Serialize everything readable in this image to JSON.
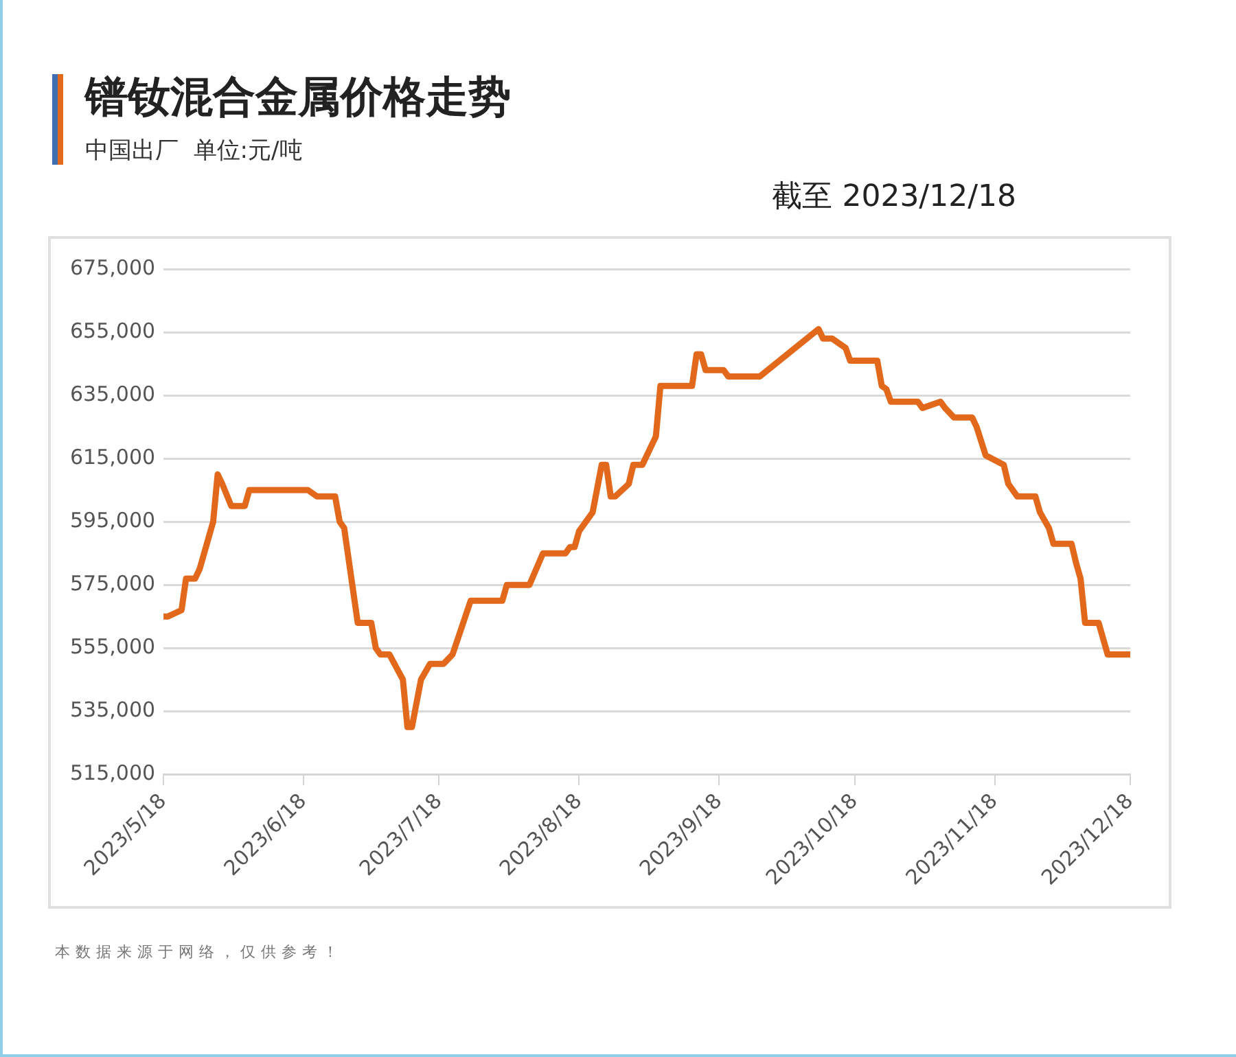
{
  "chart_data": {
    "type": "line",
    "title": "镨钕混合金属价格走势",
    "subtitle": "中国出厂  单位:元/吨",
    "annotations": [
      "截至 2023/12/18",
      "本数据来源于网络，仅供参考！"
    ],
    "x": [
      "2023-05-18",
      "2023-05-19",
      "2023-05-22",
      "2023-05-23",
      "2023-05-25",
      "2023-05-26",
      "2023-05-29",
      "2023-05-30",
      "2023-05-31",
      "2023-06-02",
      "2023-06-05",
      "2023-06-06",
      "2023-06-19",
      "2023-06-21",
      "2023-06-25",
      "2023-06-26",
      "2023-06-27",
      "2023-06-30",
      "2023-07-03",
      "2023-07-04",
      "2023-07-05",
      "2023-07-07",
      "2023-07-10",
      "2023-07-11",
      "2023-07-12",
      "2023-07-14",
      "2023-07-16",
      "2023-07-19",
      "2023-07-21",
      "2023-07-25",
      "2023-08-01",
      "2023-08-02",
      "2023-08-07",
      "2023-08-10",
      "2023-08-15",
      "2023-08-16",
      "2023-08-17",
      "2023-08-18",
      "2023-08-21",
      "2023-08-23",
      "2023-08-24",
      "2023-08-25",
      "2023-08-26",
      "2023-08-29",
      "2023-08-30",
      "2023-09-01",
      "2023-09-04",
      "2023-09-05",
      "2023-09-12",
      "2023-09-13",
      "2023-09-14",
      "2023-09-15",
      "2023-09-19",
      "2023-09-20",
      "2023-09-27",
      "2023-10-10",
      "2023-10-11",
      "2023-10-13",
      "2023-10-16",
      "2023-10-17",
      "2023-10-23",
      "2023-10-24",
      "2023-10-25",
      "2023-10-26",
      "2023-11-01",
      "2023-11-02",
      "2023-11-06",
      "2023-11-07",
      "2023-11-09",
      "2023-11-13",
      "2023-11-14",
      "2023-11-16",
      "2023-11-20",
      "2023-11-21",
      "2023-11-23",
      "2023-11-27",
      "2023-11-28",
      "2023-11-30",
      "2023-12-01",
      "2023-12-05",
      "2023-12-06",
      "2023-12-07",
      "2023-12-08",
      "2023-12-11",
      "2023-12-13",
      "2023-12-18"
    ],
    "series": [
      {
        "color": "#e2691c",
        "values": [
          565000,
          565000,
          567000,
          577000,
          577000,
          580000,
          595000,
          610000,
          607000,
          600000,
          600000,
          605000,
          605000,
          603000,
          603000,
          595000,
          593000,
          563000,
          563000,
          555000,
          553000,
          553000,
          545000,
          530000,
          530000,
          545000,
          550000,
          550000,
          553000,
          570000,
          570000,
          575000,
          575000,
          585000,
          585000,
          587000,
          587000,
          592000,
          598000,
          613000,
          613000,
          603000,
          603000,
          607000,
          613000,
          613000,
          622000,
          638000,
          638000,
          648000,
          648000,
          643000,
          643000,
          641000,
          641000,
          656000,
          653000,
          653000,
          650000,
          646000,
          646000,
          638000,
          637000,
          633000,
          633000,
          631000,
          633000,
          631000,
          628000,
          628000,
          625000,
          616000,
          613000,
          607000,
          603000,
          603000,
          598000,
          593000,
          588000,
          588000,
          582000,
          577000,
          563000,
          563000,
          553000,
          553000
        ]
      }
    ],
    "xlim": [
      "2023-05-18",
      "2023-12-18"
    ],
    "xticks": [
      {
        "value": "2023-05-18",
        "label": "2023/5/18"
      },
      {
        "value": "2023-06-18",
        "label": "2023/6/18"
      },
      {
        "value": "2023-07-18",
        "label": "2023/7/18"
      },
      {
        "value": "2023-08-18",
        "label": "2023/8/18"
      },
      {
        "value": "2023-09-18",
        "label": "2023/9/18"
      },
      {
        "value": "2023-10-18",
        "label": "2023/10/18"
      },
      {
        "value": "2023-11-18",
        "label": "2023/11/18"
      },
      {
        "value": "2023-12-18",
        "label": "2023/12/18"
      }
    ],
    "ylim": [
      515000,
      675000
    ],
    "yticks": [
      {
        "value": 515000,
        "label": "515,000"
      },
      {
        "value": 535000,
        "label": "535,000"
      },
      {
        "value": 555000,
        "label": "555,000"
      },
      {
        "value": 575000,
        "label": "575,000"
      },
      {
        "value": 595000,
        "label": "595,000"
      },
      {
        "value": 615000,
        "label": "615,000"
      },
      {
        "value": 635000,
        "label": "635,000"
      },
      {
        "value": 655000,
        "label": "655,000"
      },
      {
        "value": 675000,
        "label": "675,000"
      }
    ],
    "grid": "y",
    "legend": false,
    "marker": "none",
    "line_style": "solid"
  }
}
